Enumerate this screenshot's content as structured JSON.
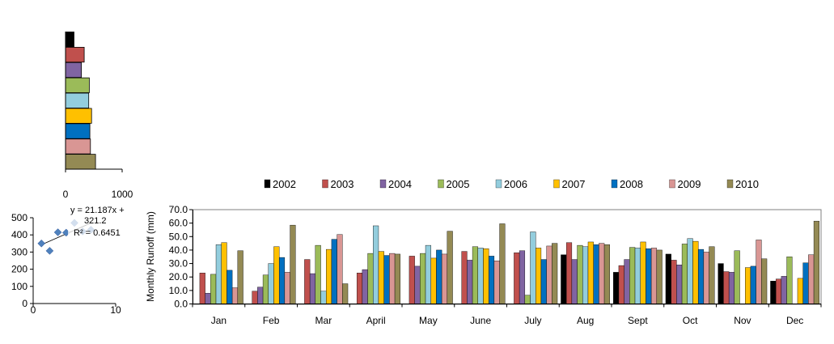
{
  "chart_data": [
    {
      "type": "bar",
      "orientation": "horizontal",
      "values": [
        150,
        330,
        280,
        420,
        410,
        460,
        430,
        440,
        530
      ],
      "colors": [
        "#000000",
        "#c0504d",
        "#8064a2",
        "#9bbb59",
        "#93cddd",
        "#ffc000",
        "#0070c0",
        "#d99694",
        "#948a54"
      ],
      "xlim": [
        0,
        1000
      ],
      "xticks": [
        "0",
        "1000"
      ],
      "grid": false
    },
    {
      "type": "scatter",
      "points": [
        [
          1,
          350
        ],
        [
          2,
          307
        ],
        [
          3,
          415
        ],
        [
          4,
          413
        ],
        [
          5,
          470
        ],
        [
          6,
          420
        ],
        [
          7,
          430
        ]
      ],
      "trendline": {
        "slope": 21.187,
        "intercept": 321.2
      },
      "annotation_lines": [
        "y = 21.187x +",
        "321.2",
        "R² = 0.6451"
      ],
      "xlim": [
        0,
        10
      ],
      "ylim": [
        0,
        500
      ],
      "xticks": [
        "0",
        "10"
      ],
      "yticks": [
        "0",
        "100",
        "200",
        "300",
        "400",
        "500"
      ],
      "marker_color": "#4f81bd",
      "grid": false
    },
    {
      "type": "bar",
      "title": "",
      "ylabel": "Monthly  Runoff (mm)",
      "ylim": [
        0,
        70
      ],
      "yticks": [
        "0.0",
        "10.0",
        "20.0",
        "30.0",
        "40.0",
        "50.0",
        "60.0",
        "70.0"
      ],
      "grid": false,
      "legend_position": "top",
      "categories": [
        "Jan",
        "Feb",
        "Mar",
        "April",
        "May",
        "June",
        "July",
        "Aug",
        "Sept",
        "Oct",
        "Nov",
        "Dec"
      ],
      "series": [
        {
          "name": "2002",
          "color": "#000000",
          "values": [
            0,
            0,
            0,
            0,
            0,
            0,
            0,
            36.5,
            23.5,
            37.0,
            30.0,
            17.0
          ]
        },
        {
          "name": "2003",
          "color": "#c0504d",
          "values": [
            23.0,
            9.5,
            33.0,
            23.0,
            35.5,
            39.0,
            38.0,
            45.5,
            28.5,
            32.5,
            24.0,
            18.5
          ]
        },
        {
          "name": "2004",
          "color": "#8064a2",
          "values": [
            8.0,
            12.5,
            22.5,
            25.5,
            28.0,
            32.5,
            39.5,
            33.0,
            33.0,
            29.0,
            23.5,
            20.5
          ]
        },
        {
          "name": "2005",
          "color": "#9bbb59",
          "values": [
            22.0,
            21.5,
            43.5,
            37.5,
            37.5,
            42.5,
            6.5,
            43.5,
            42.0,
            44.5,
            39.5,
            35.0
          ]
        },
        {
          "name": "2006",
          "color": "#93cddd",
          "values": [
            44.0,
            30.0,
            9.5,
            58.0,
            43.5,
            41.5,
            53.5,
            42.5,
            41.5,
            48.5,
            0,
            0
          ]
        },
        {
          "name": "2007",
          "color": "#ffc000",
          "values": [
            45.5,
            42.5,
            40.5,
            39.0,
            34.0,
            41.0,
            41.5,
            46.0,
            46.0,
            46.5,
            27.0,
            19.0
          ]
        },
        {
          "name": "2008",
          "color": "#0070c0",
          "values": [
            25.0,
            34.5,
            48.0,
            36.0,
            40.0,
            35.5,
            33.0,
            44.0,
            41.0,
            40.5,
            28.0,
            30.5
          ]
        },
        {
          "name": "2009",
          "color": "#d99694",
          "values": [
            12.0,
            23.5,
            51.5,
            37.5,
            37.0,
            32.0,
            43.0,
            45.0,
            41.5,
            38.5,
            47.5,
            36.5
          ]
        },
        {
          "name": "2010",
          "color": "#948a54",
          "values": [
            39.5,
            58.5,
            15.0,
            37.0,
            54.0,
            59.5,
            45.0,
            44.0,
            40.0,
            42.5,
            33.5,
            61.5
          ]
        }
      ]
    }
  ]
}
